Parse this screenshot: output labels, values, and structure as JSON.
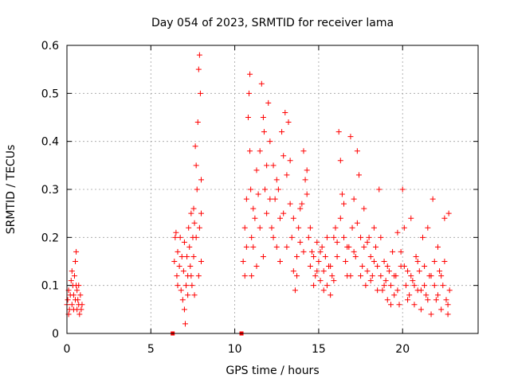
{
  "chart_data": {
    "type": "scatter",
    "title": "Day 054 of 2023, SRMTID for receiver lama",
    "xlabel": "GPS time / hours",
    "ylabel": "SRMTID / TECUs",
    "xlim": [
      0,
      24.5
    ],
    "ylim": [
      0,
      0.6
    ],
    "xticks": [
      0,
      5,
      10,
      15,
      20
    ],
    "xtick_labels": [
      "0",
      "5",
      "10",
      "15",
      "20"
    ],
    "yticks": [
      0,
      0.1,
      0.2,
      0.3,
      0.4,
      0.5,
      0.6
    ],
    "ytick_labels": [
      "0",
      "0.1",
      "0.2",
      "0.3",
      "0.4",
      "0.5",
      "0.6"
    ],
    "grid": true,
    "marker": "plus",
    "color": "#ff0000",
    "series": [
      {
        "name": "SRMTID",
        "points": [
          [
            0.0,
            0.06
          ],
          [
            0.05,
            0.07
          ],
          [
            0.1,
            0.09
          ],
          [
            0.15,
            0.05
          ],
          [
            0.2,
            0.08
          ],
          [
            0.25,
            0.11
          ],
          [
            0.3,
            0.06
          ],
          [
            0.35,
            0.1
          ],
          [
            0.4,
            0.08
          ],
          [
            0.45,
            0.12
          ],
          [
            0.5,
            0.07
          ],
          [
            0.5,
            0.15
          ],
          [
            0.55,
            0.17
          ],
          [
            0.55,
            0.1
          ],
          [
            0.6,
            0.09
          ],
          [
            0.6,
            0.05
          ],
          [
            0.65,
            0.07
          ],
          [
            0.7,
            0.06
          ],
          [
            0.75,
            0.04
          ],
          [
            0.8,
            0.08
          ],
          [
            0.85,
            0.05
          ],
          [
            0.9,
            0.06
          ],
          [
            0.1,
            0.04
          ],
          [
            0.3,
            0.13
          ],
          [
            0.4,
            0.05
          ],
          [
            0.7,
            0.1
          ],
          [
            6.3,
            0.0
          ],
          [
            10.4,
            0.0
          ],
          [
            6.4,
            0.15
          ],
          [
            6.5,
            0.21
          ],
          [
            6.55,
            0.12
          ],
          [
            6.6,
            0.17
          ],
          [
            6.7,
            0.14
          ],
          [
            6.75,
            0.2
          ],
          [
            6.8,
            0.09
          ],
          [
            6.85,
            0.16
          ],
          [
            6.9,
            0.07
          ],
          [
            6.95,
            0.13
          ],
          [
            7.0,
            0.19
          ],
          [
            7.0,
            0.05
          ],
          [
            7.05,
            0.02
          ],
          [
            7.1,
            0.1
          ],
          [
            7.15,
            0.16
          ],
          [
            7.2,
            0.12
          ],
          [
            7.25,
            0.22
          ],
          [
            7.3,
            0.18
          ],
          [
            7.35,
            0.14
          ],
          [
            7.4,
            0.25
          ],
          [
            7.45,
            0.1
          ],
          [
            7.5,
            0.2
          ],
          [
            7.55,
            0.16
          ],
          [
            7.6,
            0.23
          ],
          [
            7.65,
            0.39
          ],
          [
            7.7,
            0.35
          ],
          [
            7.75,
            0.3
          ],
          [
            7.8,
            0.44
          ],
          [
            7.85,
            0.55
          ],
          [
            7.9,
            0.58
          ],
          [
            7.95,
            0.5
          ],
          [
            8.0,
            0.25
          ],
          [
            8.0,
            0.15
          ],
          [
            7.85,
            0.12
          ],
          [
            7.7,
            0.2
          ],
          [
            7.6,
            0.08
          ],
          [
            7.4,
            0.12
          ],
          [
            7.2,
            0.08
          ],
          [
            6.6,
            0.1
          ],
          [
            6.45,
            0.2
          ],
          [
            8.0,
            0.32
          ],
          [
            7.9,
            0.22
          ],
          [
            7.55,
            0.26
          ],
          [
            10.5,
            0.15
          ],
          [
            10.6,
            0.22
          ],
          [
            10.7,
            0.28
          ],
          [
            10.8,
            0.45
          ],
          [
            10.85,
            0.5
          ],
          [
            10.9,
            0.54
          ],
          [
            10.95,
            0.3
          ],
          [
            11.0,
            0.2
          ],
          [
            11.0,
            0.12
          ],
          [
            11.1,
            0.18
          ],
          [
            11.2,
            0.24
          ],
          [
            11.3,
            0.34
          ],
          [
            11.4,
            0.29
          ],
          [
            11.5,
            0.38
          ],
          [
            11.6,
            0.52
          ],
          [
            11.7,
            0.45
          ],
          [
            11.75,
            0.42
          ],
          [
            11.8,
            0.3
          ],
          [
            11.9,
            0.25
          ],
          [
            12.0,
            0.48
          ],
          [
            12.1,
            0.4
          ],
          [
            12.2,
            0.22
          ],
          [
            12.3,
            0.35
          ],
          [
            12.4,
            0.28
          ],
          [
            12.5,
            0.18
          ],
          [
            12.6,
            0.3
          ],
          [
            12.7,
            0.24
          ],
          [
            12.8,
            0.42
          ],
          [
            12.9,
            0.37
          ],
          [
            13.0,
            0.46
          ],
          [
            13.1,
            0.33
          ],
          [
            13.2,
            0.44
          ],
          [
            13.3,
            0.27
          ],
          [
            13.4,
            0.2
          ],
          [
            13.5,
            0.13
          ],
          [
            13.6,
            0.09
          ],
          [
            13.7,
            0.16
          ],
          [
            13.8,
            0.22
          ],
          [
            13.9,
            0.19
          ],
          [
            14.0,
            0.27
          ],
          [
            14.1,
            0.38
          ],
          [
            14.2,
            0.32
          ],
          [
            14.3,
            0.29
          ],
          [
            14.4,
            0.2
          ],
          [
            14.5,
            0.14
          ],
          [
            14.6,
            0.17
          ],
          [
            14.7,
            0.1
          ],
          [
            14.8,
            0.12
          ],
          [
            14.9,
            0.19
          ],
          [
            15.0,
            0.15
          ],
          [
            15.1,
            0.11
          ],
          [
            15.2,
            0.18
          ],
          [
            15.3,
            0.13
          ],
          [
            15.4,
            0.16
          ],
          [
            15.5,
            0.1
          ],
          [
            15.6,
            0.14
          ],
          [
            15.7,
            0.08
          ],
          [
            15.8,
            0.12
          ],
          [
            15.9,
            0.2
          ],
          [
            16.0,
            0.22
          ],
          [
            16.1,
            0.16
          ],
          [
            16.2,
            0.42
          ],
          [
            16.3,
            0.36
          ],
          [
            16.4,
            0.29
          ],
          [
            16.5,
            0.2
          ],
          [
            16.6,
            0.15
          ],
          [
            16.7,
            0.12
          ],
          [
            16.8,
            0.18
          ],
          [
            16.9,
            0.41
          ],
          [
            17.0,
            0.22
          ],
          [
            17.1,
            0.28
          ],
          [
            17.2,
            0.16
          ],
          [
            17.3,
            0.38
          ],
          [
            17.4,
            0.33
          ],
          [
            17.5,
            0.2
          ],
          [
            17.6,
            0.14
          ],
          [
            17.7,
            0.18
          ],
          [
            17.8,
            0.1
          ],
          [
            17.9,
            0.13
          ],
          [
            18.0,
            0.2
          ],
          [
            18.1,
            0.16
          ],
          [
            18.2,
            0.12
          ],
          [
            18.3,
            0.22
          ],
          [
            18.4,
            0.18
          ],
          [
            18.5,
            0.14
          ],
          [
            18.6,
            0.3
          ],
          [
            18.7,
            0.12
          ],
          [
            18.8,
            0.09
          ],
          [
            18.9,
            0.15
          ],
          [
            19.0,
            0.11
          ],
          [
            19.1,
            0.07
          ],
          [
            19.2,
            0.13
          ],
          [
            19.3,
            0.1
          ],
          [
            19.4,
            0.17
          ],
          [
            19.5,
            0.08
          ],
          [
            19.6,
            0.12
          ],
          [
            19.7,
            0.21
          ],
          [
            19.8,
            0.06
          ],
          [
            19.9,
            0.14
          ],
          [
            20.0,
            0.3
          ],
          [
            20.1,
            0.22
          ],
          [
            20.2,
            0.1
          ],
          [
            20.3,
            0.13
          ],
          [
            20.4,
            0.08
          ],
          [
            20.5,
            0.24
          ],
          [
            20.6,
            0.11
          ],
          [
            20.7,
            0.06
          ],
          [
            20.8,
            0.16
          ],
          [
            20.9,
            0.09
          ],
          [
            21.0,
            0.13
          ],
          [
            21.1,
            0.05
          ],
          [
            21.2,
            0.2
          ],
          [
            21.3,
            0.1
          ],
          [
            21.4,
            0.08
          ],
          [
            21.5,
            0.22
          ],
          [
            21.6,
            0.12
          ],
          [
            21.7,
            0.04
          ],
          [
            21.8,
            0.28
          ],
          [
            21.9,
            0.1
          ],
          [
            22.0,
            0.07
          ],
          [
            22.1,
            0.18
          ],
          [
            22.2,
            0.13
          ],
          [
            22.3,
            0.05
          ],
          [
            22.4,
            0.1
          ],
          [
            22.5,
            0.24
          ],
          [
            22.6,
            0.07
          ],
          [
            22.7,
            0.04
          ],
          [
            22.75,
            0.25
          ],
          [
            22.8,
            0.09
          ],
          [
            10.6,
            0.12
          ],
          [
            10.7,
            0.18
          ],
          [
            10.9,
            0.38
          ],
          [
            11.1,
            0.26
          ],
          [
            11.3,
            0.14
          ],
          [
            11.5,
            0.22
          ],
          [
            11.7,
            0.16
          ],
          [
            11.9,
            0.35
          ],
          [
            12.1,
            0.28
          ],
          [
            12.3,
            0.2
          ],
          [
            12.5,
            0.32
          ],
          [
            12.7,
            0.15
          ],
          [
            12.9,
            0.25
          ],
          [
            13.1,
            0.18
          ],
          [
            13.3,
            0.36
          ],
          [
            13.5,
            0.24
          ],
          [
            13.7,
            0.12
          ],
          [
            13.9,
            0.26
          ],
          [
            14.1,
            0.17
          ],
          [
            14.3,
            0.34
          ],
          [
            14.5,
            0.22
          ],
          [
            14.7,
            0.16
          ],
          [
            14.9,
            0.13
          ],
          [
            15.1,
            0.17
          ],
          [
            15.3,
            0.09
          ],
          [
            15.5,
            0.2
          ],
          [
            15.7,
            0.14
          ],
          [
            15.9,
            0.11
          ],
          [
            16.1,
            0.19
          ],
          [
            16.3,
            0.24
          ],
          [
            16.5,
            0.27
          ],
          [
            16.7,
            0.18
          ],
          [
            16.9,
            0.12
          ],
          [
            17.1,
            0.17
          ],
          [
            17.3,
            0.23
          ],
          [
            17.5,
            0.12
          ],
          [
            17.7,
            0.26
          ],
          [
            17.9,
            0.19
          ],
          [
            18.1,
            0.11
          ],
          [
            18.3,
            0.15
          ],
          [
            18.5,
            0.09
          ],
          [
            18.7,
            0.2
          ],
          [
            18.9,
            0.1
          ],
          [
            19.1,
            0.14
          ],
          [
            19.3,
            0.06
          ],
          [
            19.5,
            0.12
          ],
          [
            19.7,
            0.09
          ],
          [
            19.9,
            0.17
          ],
          [
            20.1,
            0.14
          ],
          [
            20.3,
            0.07
          ],
          [
            20.5,
            0.12
          ],
          [
            20.7,
            0.1
          ],
          [
            20.9,
            0.15
          ],
          [
            21.1,
            0.09
          ],
          [
            21.3,
            0.14
          ],
          [
            21.5,
            0.07
          ],
          [
            21.7,
            0.12
          ],
          [
            21.9,
            0.15
          ],
          [
            22.1,
            0.08
          ],
          [
            22.3,
            0.12
          ],
          [
            22.5,
            0.15
          ],
          [
            22.7,
            0.06
          ]
        ]
      }
    ]
  }
}
